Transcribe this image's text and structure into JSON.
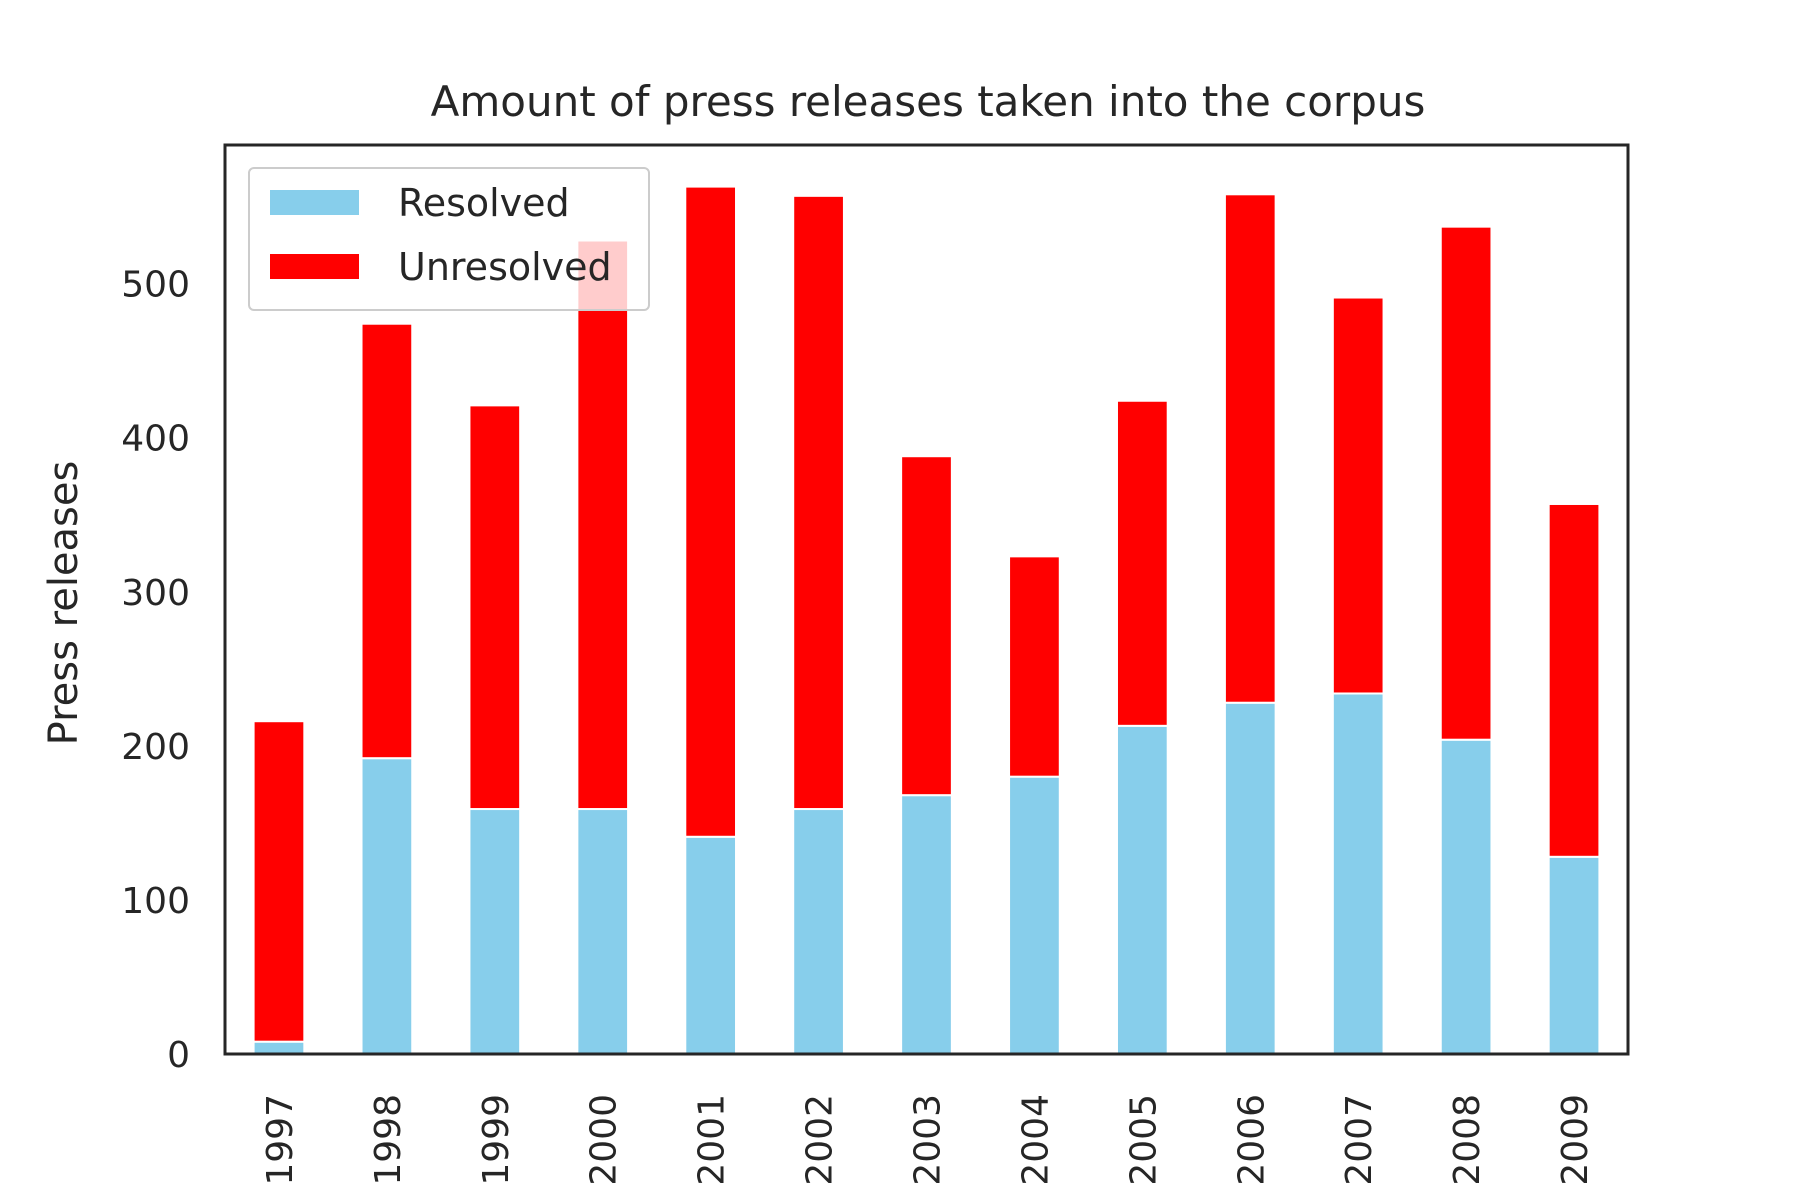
{
  "chart_data": {
    "type": "bar",
    "stacked": true,
    "title": "Amount of press releases taken into the corpus",
    "xlabel": "",
    "ylabel": "Press releases",
    "ylim": [
      0,
      590
    ],
    "yticks": [
      0,
      100,
      200,
      300,
      400,
      500
    ],
    "grid": false,
    "legend_position": "top-left",
    "categories": [
      "1997",
      "1998",
      "1999",
      "2000",
      "2001",
      "2002",
      "2003",
      "2004",
      "2005",
      "2006",
      "2007",
      "2008",
      "2009"
    ],
    "series": [
      {
        "name": "Resolved",
        "color": "#87ceeb",
        "values": [
          8,
          192,
          159,
          159,
          141,
          159,
          168,
          180,
          213,
          228,
          234,
          204,
          128
        ]
      },
      {
        "name": "Unresolved",
        "color": "#ff0000",
        "values": [
          208,
          282,
          262,
          369,
          422,
          398,
          220,
          143,
          211,
          330,
          257,
          333,
          229
        ]
      }
    ]
  }
}
